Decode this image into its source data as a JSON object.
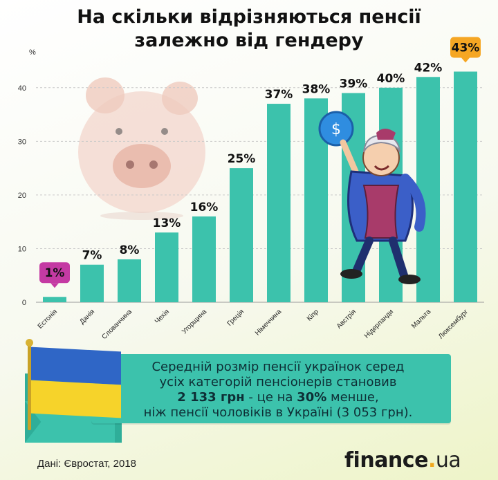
{
  "title_line1": "На скільки відрізняються пенсії",
  "title_line2": "залежно від гендеру",
  "colors": {
    "bar": "#3cc2ac",
    "grid": "#c9c9c9",
    "highlight_min": "#c43aa3",
    "highlight_max": "#f5a623",
    "accent": "#3cc2ac"
  },
  "chart_data": {
    "type": "bar",
    "categories": [
      "Естонія",
      "Данія",
      "Словаччина",
      "Чехія",
      "Угорщина",
      "Греція",
      "Німеччина",
      "Кіпр",
      "Австрія",
      "Нідерланди",
      "Мальта",
      "Люксембург"
    ],
    "values": [
      1,
      7,
      8,
      13,
      16,
      25,
      37,
      38,
      39,
      40,
      42,
      43
    ],
    "data_labels": [
      "1%",
      "7%",
      "8%",
      "13%",
      "16%",
      "25%",
      "37%",
      "38%",
      "39%",
      "40%",
      "42%",
      "43%"
    ],
    "ylabel": "%",
    "ylim": [
      0,
      45
    ],
    "yticks": [
      0,
      10,
      20,
      30,
      40
    ],
    "grid": true,
    "highlight": {
      "min_index": 0,
      "max_index": 11
    }
  },
  "callout": {
    "line1": "Середній розмір пенсії українок серед",
    "line2": "усіх категорій пенсіонерів становив",
    "amount": "2 133 грн",
    "mid": " - це на ",
    "percent": "30%",
    "tail": " менше,",
    "line4": "ніж пенсії чоловіків в Україні (3 053 грн)."
  },
  "source": "Дані: Євростат, 2018",
  "logo": {
    "main": "finance",
    "dot": ".",
    "tld": "ua"
  }
}
